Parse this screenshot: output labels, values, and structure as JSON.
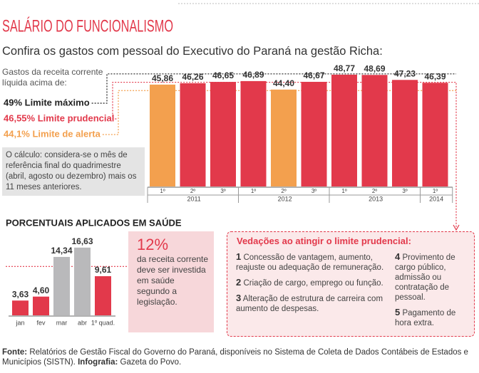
{
  "header": {
    "title": "SALÁRIO DO FUNCIONALISMO",
    "subtitle": "Confira os gastos com pessoal do Executivo do Paraná na gestão Richa:"
  },
  "chart_data": [
    {
      "type": "bar",
      "intro": "Gastos da receita corrente líquida acima de:",
      "groups": [
        {
          "name": "2011",
          "categories": [
            "1º",
            "2º",
            "3º"
          ]
        },
        {
          "name": "2012",
          "categories": [
            "1º",
            "2º",
            "3º"
          ]
        },
        {
          "name": "2013",
          "categories": [
            "1º",
            "2º",
            "3º"
          ]
        },
        {
          "name": "2014",
          "categories": [
            "1º"
          ]
        }
      ],
      "values": [
        45.86,
        46.26,
        46.65,
        46.89,
        44.4,
        46.67,
        48.77,
        48.69,
        47.23,
        46.39
      ],
      "value_labels": [
        "45,86",
        "46,26",
        "46,65",
        "46,89",
        "44,40",
        "46,67",
        "48,77",
        "48,69",
        "47,23",
        "46,39"
      ],
      "colors": [
        "#f3a04e",
        "#e2394b",
        "#e2394b",
        "#e2394b",
        "#f3a04e",
        "#e2394b",
        "#e2394b",
        "#e2394b",
        "#e2394b",
        "#e2394b"
      ],
      "ylim": [
        16,
        50
      ],
      "reference_lines": [
        {
          "value": 49,
          "label": "49% Limite máximo",
          "color": "#222222"
        },
        {
          "value": 46.55,
          "label": "46,55% Limite prudencial",
          "color": "#e2394b"
        },
        {
          "value": 44.1,
          "label": "44,1% Limite de alerta",
          "color": "#f3a04e"
        }
      ]
    },
    {
      "type": "bar",
      "title": "PORCENTUAIS APLICADOS EM SAÚDE",
      "categories": [
        "jan",
        "fev",
        "mar",
        "abr",
        "1º quad."
      ],
      "values": [
        3.63,
        4.6,
        14.34,
        16.63,
        9.61
      ],
      "value_labels": [
        "3,63",
        "4,60",
        "14,34",
        "16,63",
        "9,61"
      ],
      "colors": [
        "#e2394b",
        "#e2394b",
        "#b9b9bb",
        "#b9b9bb",
        "#e2394b"
      ],
      "ylim": [
        0,
        18
      ],
      "reference_lines": [
        {
          "value": 12,
          "label": "12%",
          "color": "#e2394b"
        }
      ]
    }
  ],
  "health_note": "da receita corrente deve ser investida em saúde segundo a legislação.",
  "calc_note": "O cálculo: considera-se o mês de referência final do quadrimestre (abril, agosto ou dezembro) mais os 11 meses anteriores.",
  "restrictions": {
    "title": "Vedações ao atingir o limite prudencial:",
    "items": [
      {
        "number": "1",
        "text": "Concessão de vantagem, aumento, reajuste ou adequação de remuneração."
      },
      {
        "number": "2",
        "text": "Criação de cargo, emprego ou função."
      },
      {
        "number": "3",
        "text": "Alteração de estrutura de carreira com aumento de despesas."
      },
      {
        "number": "4",
        "text": "Provimento de cargo público, admissão ou contratação de pessoal."
      },
      {
        "number": "5",
        "text": "Pagamento de hora extra."
      }
    ]
  },
  "footer": {
    "source_label": "Fonte:",
    "source": "Relatórios de Gestão Fiscal do Governo do Paraná, disponíveis no Sistema de Coleta de Dados Contábeis de Estados e Municípios (SISTN).",
    "credit_label": "Infografia:",
    "credit": "Gazeta do Povo."
  }
}
